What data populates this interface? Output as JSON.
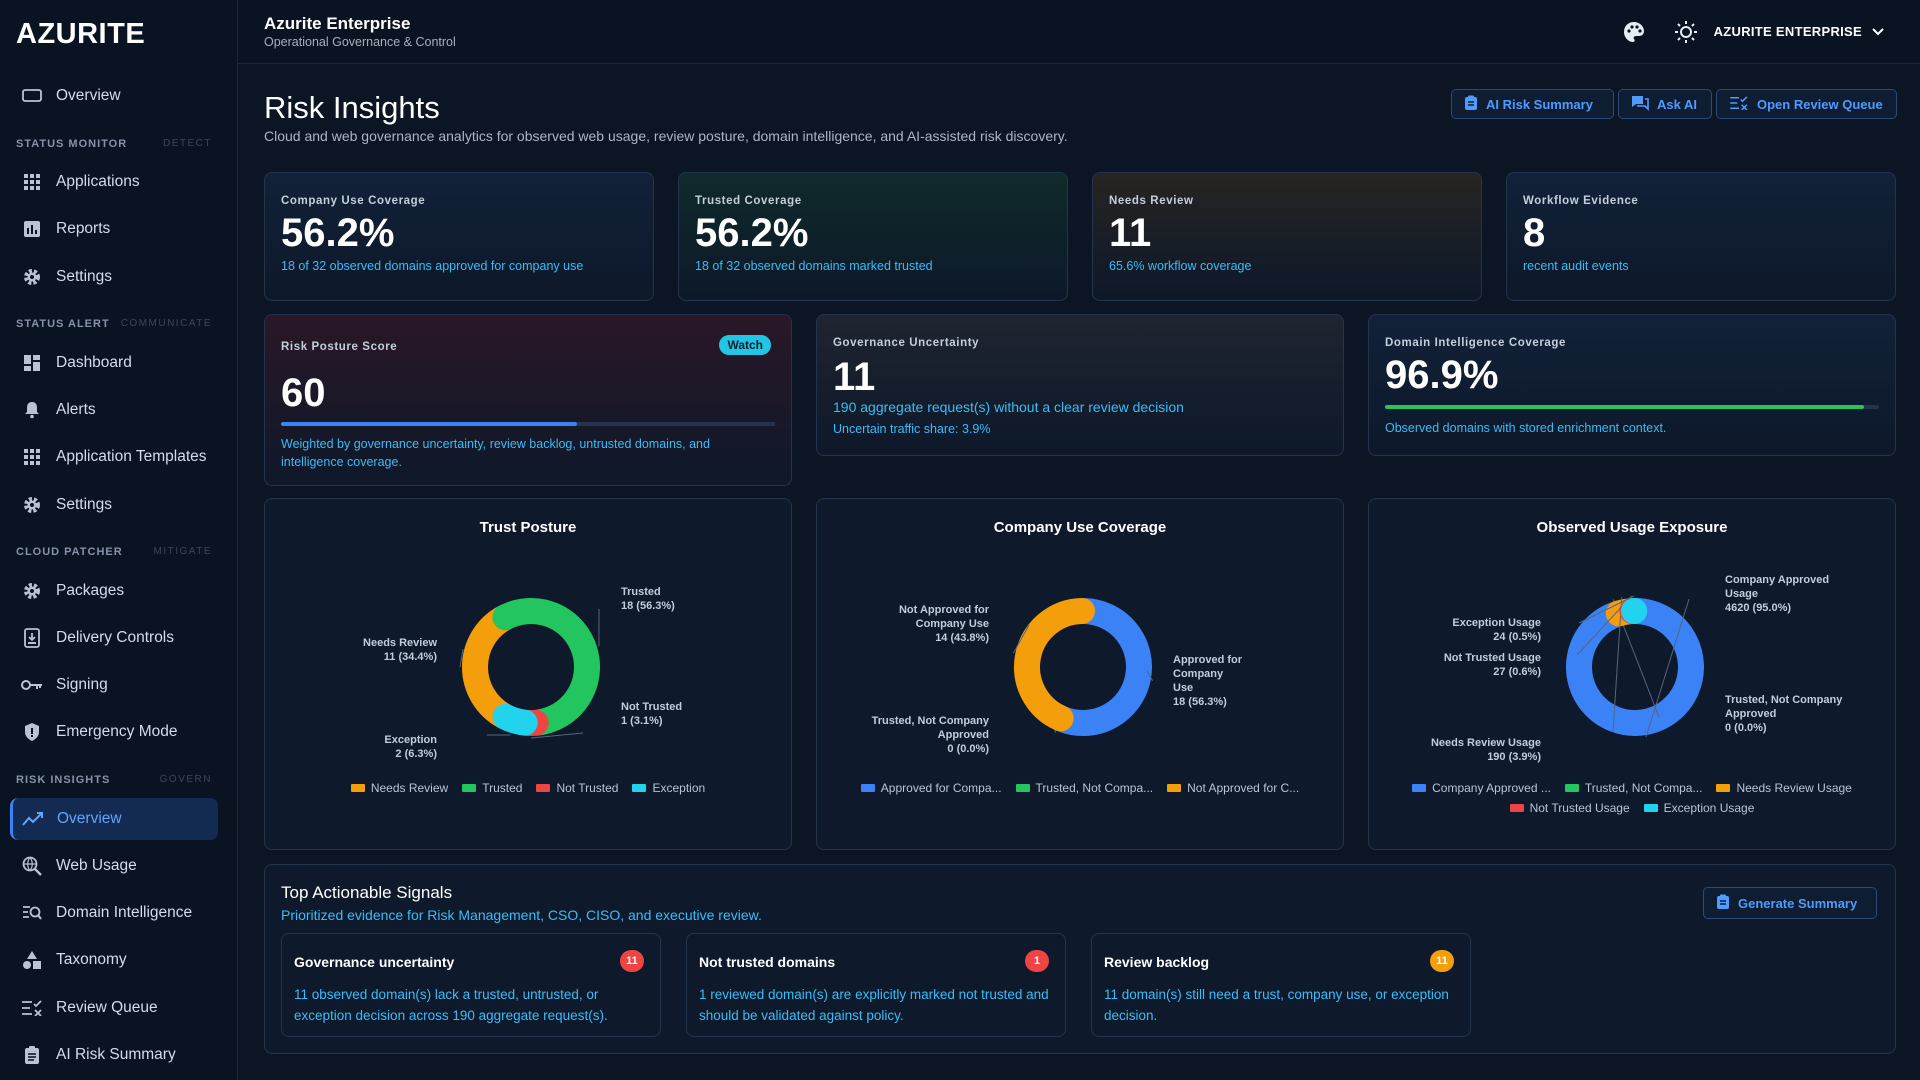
{
  "brand": "AZURITE",
  "header": {
    "org_title": "Azurite Enterprise",
    "org_subtitle": "Operational Governance & Control",
    "tenant": "AZURITE ENTERPRISE"
  },
  "sidebar": {
    "top_item": "Overview",
    "sections": [
      {
        "title": "STATUS MONITOR",
        "sub": "DETECT",
        "items": [
          "Applications",
          "Reports",
          "Settings"
        ]
      },
      {
        "title": "STATUS ALERT",
        "sub": "COMMUNICATE",
        "items": [
          "Dashboard",
          "Alerts",
          "Application Templates",
          "Settings"
        ]
      },
      {
        "title": "CLOUD PATCHER",
        "sub": "MITIGATE",
        "items": [
          "Packages",
          "Delivery Controls",
          "Signing",
          "Emergency Mode"
        ]
      },
      {
        "title": "RISK INSIGHTS",
        "sub": "GOVERN",
        "items": [
          "Overview",
          "Web Usage",
          "Domain Intelligence",
          "Taxonomy",
          "Review Queue",
          "AI Risk Summary"
        ]
      }
    ]
  },
  "page": {
    "title": "Risk Insights",
    "subtitle": "Cloud and web governance analytics for observed web usage, review posture, domain intelligence, and AI-assisted risk discovery."
  },
  "actions": {
    "ai_risk_summary": "AI Risk Summary",
    "ask_ai": "Ask AI",
    "open_review_queue": "Open Review Queue"
  },
  "kpis": [
    {
      "label": "Company Use Coverage",
      "value": "56.2%",
      "desc": "18 of 32 observed domains approved for company use"
    },
    {
      "label": "Trusted Coverage",
      "value": "56.2%",
      "desc": "18 of 32 observed domains marked trusted"
    },
    {
      "label": "Needs Review",
      "value": "11",
      "desc": "65.6% workflow coverage"
    },
    {
      "label": "Workflow Evidence",
      "value": "8",
      "desc": "recent audit events"
    }
  ],
  "risk_posture": {
    "label": "Risk Posture Score",
    "badge": "Watch",
    "value": "60",
    "progress": 0.6,
    "desc": "Weighted by governance uncertainty, review backlog, untrusted domains, and intelligence coverage."
  },
  "governance": {
    "label": "Governance Uncertainty",
    "value": "11",
    "desc": "190 aggregate request(s) without a clear review decision",
    "desc2": "Uncertain traffic share: 3.9%"
  },
  "domain_intel": {
    "label": "Domain Intelligence Coverage",
    "value": "96.9%",
    "progress": 0.969,
    "desc": "Observed domains with stored enrichment context."
  },
  "colors": {
    "blue": "#3b82f6",
    "green": "#22c55e",
    "amber": "#f59e0b",
    "red": "#ef4444",
    "cyan": "#22d3ee",
    "accent_text": "#38bdf8"
  },
  "chart_data": [
    {
      "type": "pie",
      "title": "Trust Posture",
      "series": [
        {
          "name": "Needs Review",
          "value": 11,
          "label": [
            "Needs Review",
            "11 (34.4%)"
          ],
          "color": "#f59e0b"
        },
        {
          "name": "Trusted",
          "value": 18,
          "label": [
            "Trusted",
            "18 (56.3%)"
          ],
          "color": "#22c55e"
        },
        {
          "name": "Not Trusted",
          "value": 1,
          "label": [
            "Not Trusted",
            "1 (3.1%)"
          ],
          "color": "#ef4444"
        },
        {
          "name": "Exception",
          "value": 2,
          "label": [
            "Exception",
            "2 (6.3%)"
          ],
          "color": "#22d3ee"
        }
      ],
      "legend": [
        [
          "Needs Review",
          "Trusted",
          "Not Trusted",
          "Exception"
        ]
      ]
    },
    {
      "type": "pie",
      "title": "Company Use Coverage",
      "series": [
        {
          "name": "Approved for Company Use",
          "value": 18,
          "label": [
            "Approved for",
            "Company",
            "Use",
            "18 (56.3%)"
          ],
          "color": "#3b82f6"
        },
        {
          "name": "Trusted, Not Company Approved",
          "value": 0,
          "label": [
            "Trusted, Not Company",
            "Approved",
            "0 (0.0%)"
          ],
          "color": "#22c55e"
        },
        {
          "name": "Not Approved for Company Use",
          "value": 14,
          "label": [
            "Not Approved for",
            "Company Use",
            "14 (43.8%)"
          ],
          "color": "#f59e0b"
        }
      ],
      "legend": [
        [
          "Approved for Compa...",
          "Trusted, Not Compa...",
          "Not Approved for C..."
        ]
      ]
    },
    {
      "type": "pie",
      "title": "Observed Usage Exposure",
      "series": [
        {
          "name": "Company Approved Usage",
          "value": 4620,
          "label": [
            "Company Approved",
            "Usage",
            "4620 (95.0%)"
          ],
          "color": "#3b82f6"
        },
        {
          "name": "Trusted, Not Company Approved",
          "value": 0,
          "label": [
            "Trusted, Not Company",
            "Approved",
            "0 (0.0%)"
          ],
          "color": "#22c55e"
        },
        {
          "name": "Needs Review Usage",
          "value": 190,
          "label": [
            "Needs Review Usage",
            "190 (3.9%)"
          ],
          "color": "#f59e0b"
        },
        {
          "name": "Not Trusted Usage",
          "value": 27,
          "label": [
            "Not Trusted Usage",
            "27 (0.6%)"
          ],
          "color": "#ef4444"
        },
        {
          "name": "Exception Usage",
          "value": 24,
          "label": [
            "Exception Usage",
            "24 (0.5%)"
          ],
          "color": "#22d3ee"
        }
      ],
      "legend": [
        [
          "Company Approved ...",
          "Trusted, Not Compa...",
          "Needs Review Usage"
        ],
        [
          "Not Trusted Usage",
          "Exception Usage"
        ]
      ]
    }
  ],
  "signals": {
    "title": "Top Actionable Signals",
    "subtitle": "Prioritized evidence for Risk Management, CSO, CISO, and executive review.",
    "generate_label": "Generate Summary",
    "cards": [
      {
        "title": "Governance uncertainty",
        "count": "11",
        "color": "#ef4444",
        "desc": "11 observed domain(s) lack a trusted, untrusted, or exception decision across 190 aggregate request(s)."
      },
      {
        "title": "Not trusted domains",
        "count": "1",
        "color": "#ef4444",
        "desc": "1 reviewed domain(s) are explicitly marked not trusted and should be validated against policy."
      },
      {
        "title": "Review backlog",
        "count": "11",
        "color": "#f59e0b",
        "desc": "11 domain(s) still need a trust, company use, or exception decision."
      }
    ]
  }
}
